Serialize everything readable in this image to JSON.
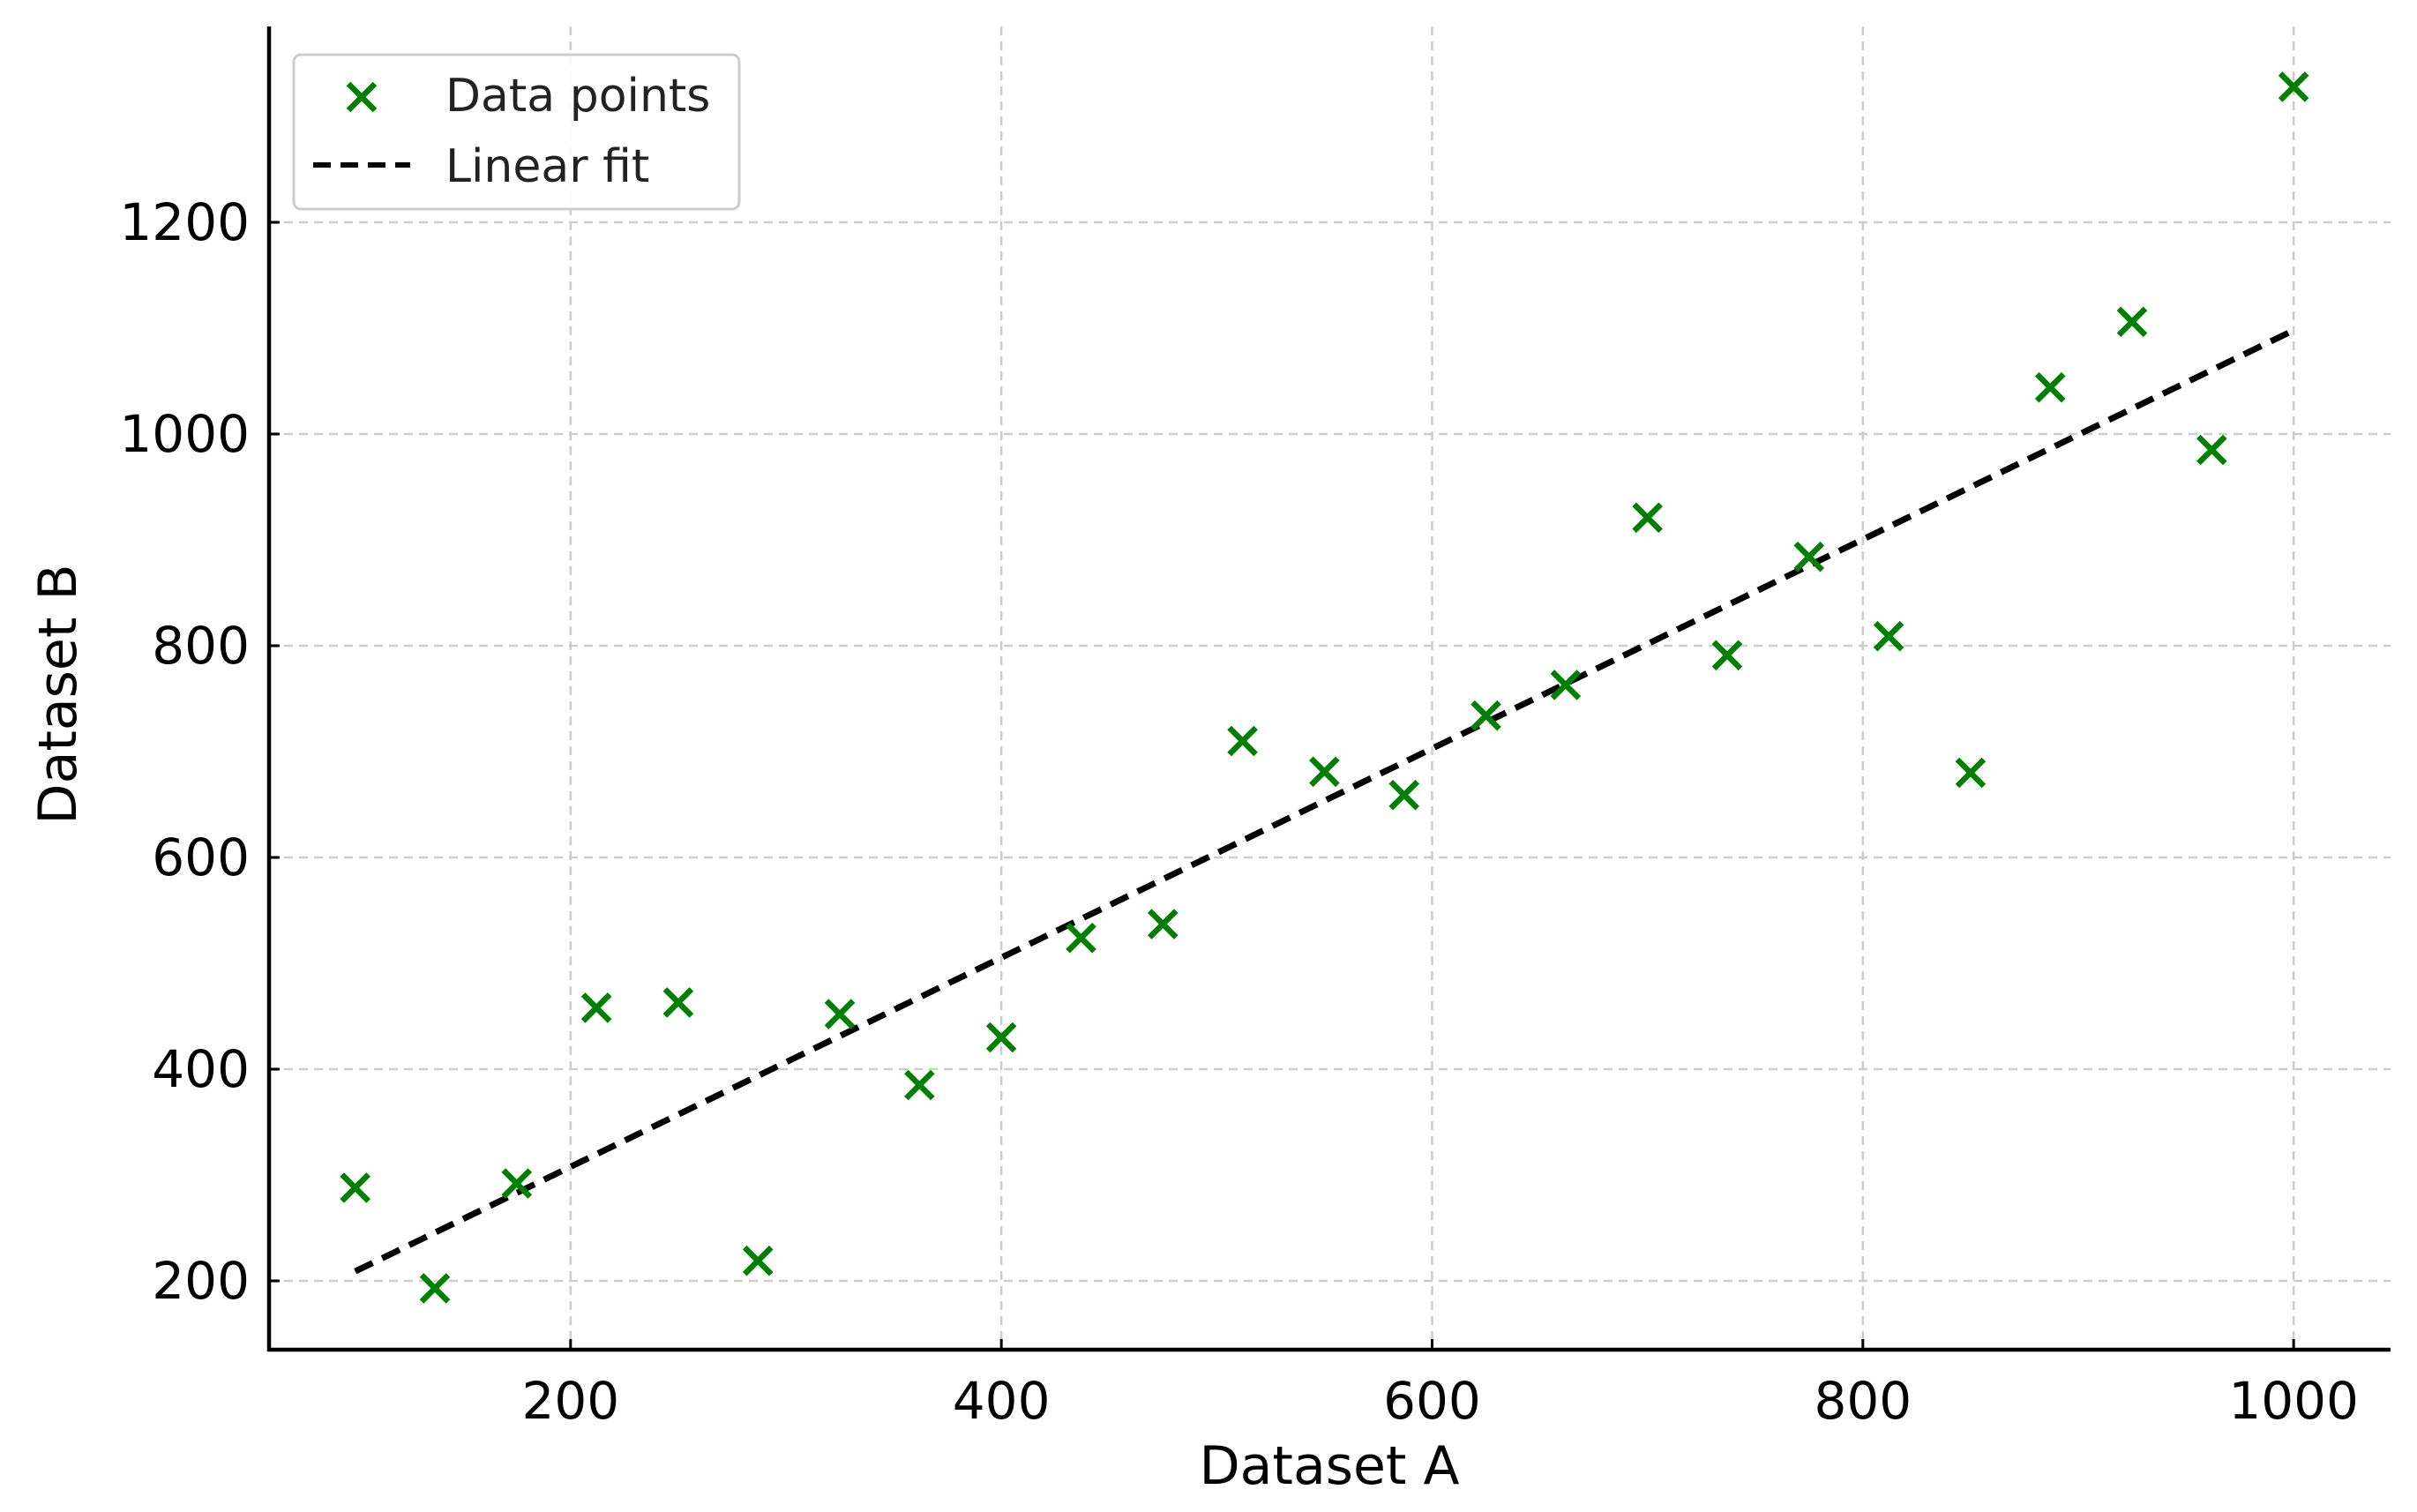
{
  "chart_data": {
    "type": "scatter",
    "xlabel": "Dataset A",
    "ylabel": "Dataset B",
    "xlim": [
      60,
      1045
    ],
    "ylim": [
      135,
      1385
    ],
    "xticks": [
      200,
      400,
      600,
      800,
      1000
    ],
    "yticks": [
      200,
      400,
      600,
      800,
      1000,
      1200
    ],
    "grid": true,
    "legend_position": "top-left",
    "series": [
      {
        "name": "Data points",
        "kind": "scatter",
        "marker": "x",
        "color": "#008000",
        "points": [
          [
            100,
            288
          ],
          [
            137,
            193
          ],
          [
            175,
            292
          ],
          [
            212,
            458
          ],
          [
            250,
            463
          ],
          [
            287,
            219
          ],
          [
            325,
            452
          ],
          [
            362,
            385
          ],
          [
            400,
            430
          ],
          [
            437,
            524
          ],
          [
            475,
            537
          ],
          [
            512,
            710
          ],
          [
            550,
            681
          ],
          [
            587,
            659
          ],
          [
            625,
            734
          ],
          [
            662,
            763
          ],
          [
            700,
            921
          ],
          [
            737,
            791
          ],
          [
            775,
            884
          ],
          [
            812,
            809
          ],
          [
            850,
            680
          ],
          [
            887,
            1044
          ],
          [
            925,
            1106
          ],
          [
            962,
            985
          ],
          [
            1000,
            1328
          ]
        ]
      },
      {
        "name": "Linear fit",
        "kind": "line",
        "style": "dashed",
        "color": "#000000",
        "points": [
          [
            100,
            209
          ],
          [
            1000,
            1098
          ]
        ]
      }
    ]
  }
}
